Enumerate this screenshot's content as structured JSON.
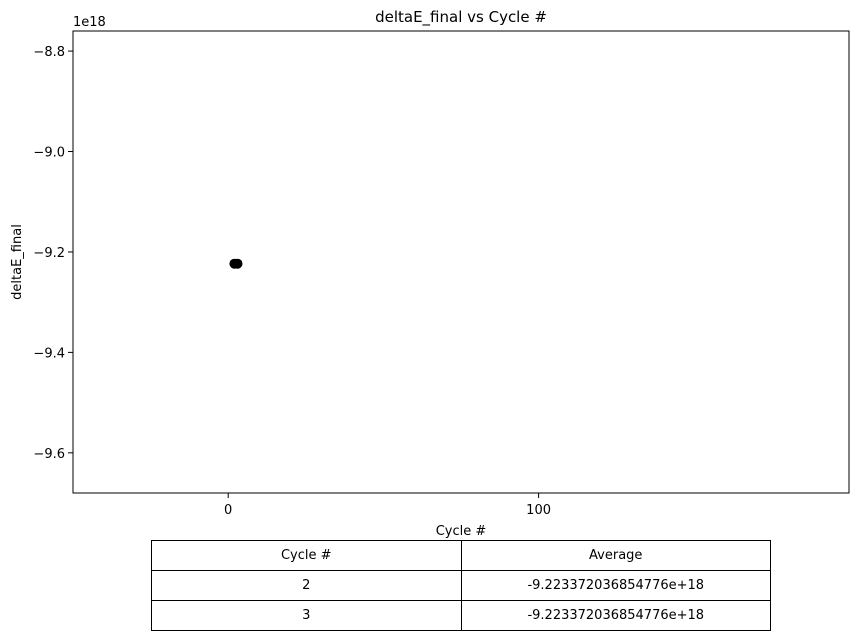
{
  "chart_data": {
    "type": "scatter",
    "title": "deltaE_final vs Cycle #",
    "xlabel": "Cycle #",
    "ylabel": "deltaE_final",
    "y_offset_label": "1e18",
    "xlim": [
      -50,
      200
    ],
    "ylim": [
      -9.68,
      -8.76
    ],
    "y_scale_factor": 1e+18,
    "x_ticks": [
      0,
      100
    ],
    "x_tick_labels": [
      "0",
      "100"
    ],
    "y_ticks": [
      -9.6,
      -9.4,
      -9.2,
      -9.0,
      -8.8
    ],
    "y_tick_labels": [
      "−9.6",
      "−9.4",
      "−9.2",
      "−9.0",
      "−8.8"
    ],
    "grid": false,
    "marker_color": "#000000",
    "series": [
      {
        "x": [
          2,
          3
        ],
        "y": [
          -9.223372036854776,
          -9.223372036854776
        ]
      }
    ]
  },
  "table": {
    "headers": [
      "Cycle #",
      "Average"
    ],
    "rows": [
      [
        "2",
        "-9.223372036854776e+18"
      ],
      [
        "3",
        "-9.223372036854776e+18"
      ]
    ]
  }
}
